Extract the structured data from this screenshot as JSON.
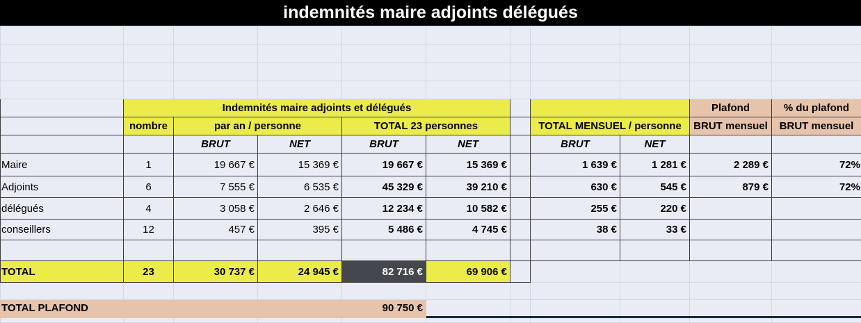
{
  "title": "indemnités maire adjoints délégués",
  "header": {
    "group": "Indemnités maire adjoints et délégués",
    "nombre": "nombre",
    "par_an": "par an / personne",
    "total23": "TOTAL 23 personnes",
    "mensuel": "TOTAL MENSUEL / personne",
    "plafond": "Plafond",
    "pct_plafond": "%  du plafond",
    "brut_mensuel": "BRUT mensuel",
    "brut": "BRUT",
    "net": "NET"
  },
  "rows": [
    {
      "label": "Maire",
      "nombre": "1",
      "an_brut": "19 667 €",
      "an_net": "15 369 €",
      "tot_brut": "19 667 €",
      "tot_net": "15 369 €",
      "m_brut": "1 639 €",
      "m_net": "1 281 €",
      "plafond": "2 289 €",
      "pct": "72%"
    },
    {
      "label": "Adjoints",
      "nombre": "6",
      "an_brut": "7 555 €",
      "an_net": "6 535 €",
      "tot_brut": "45 329 €",
      "tot_net": "39 210 €",
      "m_brut": "630 €",
      "m_net": "545 €",
      "plafond": "879 €",
      "pct": "72%"
    },
    {
      "label": "délégués",
      "nombre": "4",
      "an_brut": "3 058 €",
      "an_net": "2 646 €",
      "tot_brut": "12 234 €",
      "tot_net": "10 582 €",
      "m_brut": "255 €",
      "m_net": "220 €"
    },
    {
      "label": "conseillers",
      "nombre": "12",
      "an_brut": "457 €",
      "an_net": "395 €",
      "tot_brut": "5 486 €",
      "tot_net": "4 745 €",
      "m_brut": "38 €",
      "m_net": "33 €"
    }
  ],
  "total": {
    "label": "TOTAL",
    "nombre": "23",
    "an_brut": "30 737 €",
    "an_net": "24 945 €",
    "tot_brut": "82 716 €",
    "tot_net": "69 906 €"
  },
  "total_plafond": {
    "label": "TOTAL PLAFOND",
    "value": "90 750 €"
  },
  "colors": {
    "yellow": "#ebeb4a",
    "peach": "#e6c3ab",
    "dark": "#45474f"
  }
}
